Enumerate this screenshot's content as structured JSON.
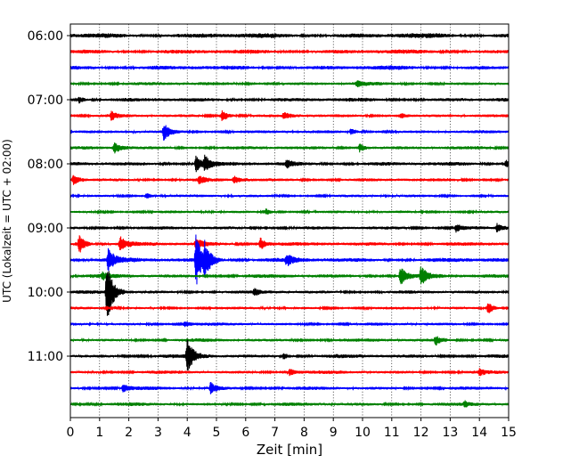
{
  "chart_data": {
    "type": "line",
    "title": "",
    "xlabel": "Zeit  [min]",
    "ylabel": "UTC (Lokalzeit = UTC + 02:00)",
    "xlim": [
      0,
      15
    ],
    "x_ticks": [
      0,
      1,
      2,
      3,
      4,
      5,
      6,
      7,
      8,
      9,
      10,
      11,
      12,
      13,
      14,
      15
    ],
    "y_ticks": [
      {
        "label": "06:00",
        "trace_index": 0
      },
      {
        "label": "07:00",
        "trace_index": 4
      },
      {
        "label": "08:00",
        "trace_index": 8
      },
      {
        "label": "09:00",
        "trace_index": 12
      },
      {
        "label": "10:00",
        "trace_index": 16
      },
      {
        "label": "11:00",
        "trace_index": 20
      }
    ],
    "grid": "vertical dotted at each minute",
    "trace_minutes": 15,
    "color_cycle": [
      "#000000",
      "#ff0000",
      "#0000ff",
      "#008000"
    ],
    "traces": [
      {
        "start": "06:00",
        "amp": 0.32,
        "events": []
      },
      {
        "start": "06:15",
        "amp": 0.28,
        "events": []
      },
      {
        "start": "06:30",
        "amp": 0.28,
        "events": []
      },
      {
        "start": "06:45",
        "amp": 0.22,
        "events": [
          {
            "t": 9.8,
            "a": 0.4
          }
        ]
      },
      {
        "start": "07:00",
        "amp": 0.25,
        "events": [
          {
            "t": 0.3,
            "a": 0.5
          }
        ]
      },
      {
        "start": "07:15",
        "amp": 0.2,
        "events": [
          {
            "t": 1.4,
            "a": 0.6
          },
          {
            "t": 5.2,
            "a": 0.9
          },
          {
            "t": 7.3,
            "a": 0.5
          },
          {
            "t": 11.3,
            "a": 0.4
          }
        ]
      },
      {
        "start": "07:30",
        "amp": 0.2,
        "events": [
          {
            "t": 3.2,
            "a": 1.2
          },
          {
            "t": 9.6,
            "a": 0.4
          }
        ]
      },
      {
        "start": "07:45",
        "amp": 0.22,
        "events": [
          {
            "t": 1.5,
            "a": 0.8
          },
          {
            "t": 9.9,
            "a": 0.6
          }
        ]
      },
      {
        "start": "08:00",
        "amp": 0.25,
        "events": [
          {
            "t": 4.3,
            "a": 1.1
          },
          {
            "t": 4.6,
            "a": 1.0
          },
          {
            "t": 7.4,
            "a": 0.5
          },
          {
            "t": 14.9,
            "a": 0.6
          }
        ]
      },
      {
        "start": "08:15",
        "amp": 0.22,
        "events": [
          {
            "t": 0.1,
            "a": 0.6
          },
          {
            "t": 4.4,
            "a": 0.5
          },
          {
            "t": 5.6,
            "a": 0.5
          }
        ]
      },
      {
        "start": "08:30",
        "amp": 0.18,
        "events": [
          {
            "t": 2.6,
            "a": 0.4
          }
        ]
      },
      {
        "start": "08:45",
        "amp": 0.18,
        "events": [
          {
            "t": 6.7,
            "a": 0.4
          }
        ]
      },
      {
        "start": "09:00",
        "amp": 0.22,
        "events": [
          {
            "t": 13.2,
            "a": 0.5
          },
          {
            "t": 14.6,
            "a": 0.5
          }
        ]
      },
      {
        "start": "09:15",
        "amp": 0.25,
        "events": [
          {
            "t": 0.3,
            "a": 1.4
          },
          {
            "t": 1.7,
            "a": 1.0
          },
          {
            "t": 4.3,
            "a": 0.9
          },
          {
            "t": 6.5,
            "a": 0.9
          }
        ]
      },
      {
        "start": "09:30",
        "amp": 0.28,
        "events": [
          {
            "t": 1.3,
            "a": 1.6
          },
          {
            "t": 4.3,
            "a": 3.8
          },
          {
            "t": 4.6,
            "a": 2.2
          },
          {
            "t": 7.4,
            "a": 0.8
          }
        ]
      },
      {
        "start": "09:45",
        "amp": 0.25,
        "events": [
          {
            "t": 11.3,
            "a": 1.3
          },
          {
            "t": 12.0,
            "a": 1.3
          },
          {
            "t": 1.1,
            "a": 0.4
          }
        ]
      },
      {
        "start": "10:00",
        "amp": 0.22,
        "events": [
          {
            "t": 1.25,
            "a": 4.5
          },
          {
            "t": 6.3,
            "a": 0.4
          }
        ]
      },
      {
        "start": "10:15",
        "amp": 0.18,
        "events": [
          {
            "t": 14.3,
            "a": 0.8
          }
        ]
      },
      {
        "start": "10:30",
        "amp": 0.2,
        "events": [
          {
            "t": 3.9,
            "a": 0.4
          }
        ]
      },
      {
        "start": "10:45",
        "amp": 0.22,
        "events": [
          {
            "t": 12.5,
            "a": 0.6
          }
        ]
      },
      {
        "start": "11:00",
        "amp": 0.25,
        "events": [
          {
            "t": 4.0,
            "a": 2.4
          },
          {
            "t": 7.3,
            "a": 0.4
          }
        ]
      },
      {
        "start": "11:15",
        "amp": 0.22,
        "events": [
          {
            "t": 7.5,
            "a": 0.5
          },
          {
            "t": 14.0,
            "a": 0.4
          }
        ]
      },
      {
        "start": "11:30",
        "amp": 0.22,
        "events": [
          {
            "t": 4.8,
            "a": 0.8
          },
          {
            "t": 1.8,
            "a": 0.5
          }
        ]
      },
      {
        "start": "11:45",
        "amp": 0.22,
        "events": [
          {
            "t": 13.5,
            "a": 0.4
          }
        ]
      }
    ]
  }
}
